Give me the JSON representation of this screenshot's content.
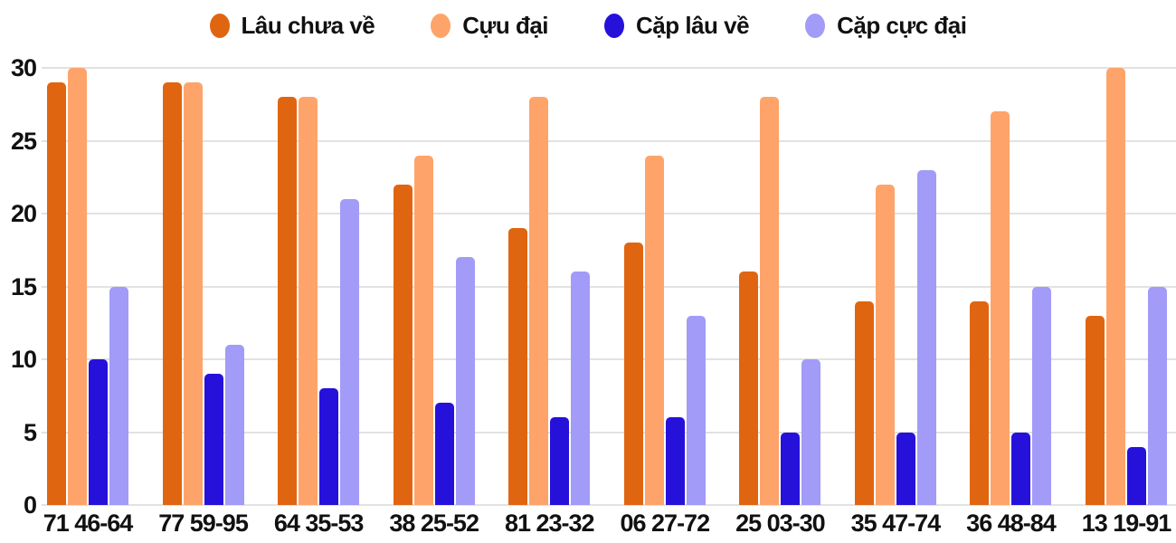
{
  "chart_data": {
    "type": "bar",
    "title": "",
    "xlabel": "",
    "ylabel": "",
    "categories": [
      "71 46-64",
      "77 59-95",
      "64 35-53",
      "38 25-52",
      "81 23-32",
      "06 27-72",
      "25 03-30",
      "35 47-74",
      "36 48-84",
      "13 19-91"
    ],
    "series": [
      {
        "name": "Lâu chưa về",
        "color": "#E06511",
        "values": [
          29,
          29,
          28,
          22,
          19,
          18,
          16,
          14,
          14,
          13
        ]
      },
      {
        "name": "Cựu đại",
        "color": "#FEA46A",
        "values": [
          30,
          29,
          28,
          24,
          28,
          24,
          28,
          22,
          27,
          30
        ]
      },
      {
        "name": "Cặp lâu về",
        "color": "#2611DB",
        "values": [
          10,
          9,
          8,
          7,
          6,
          6,
          5,
          5,
          5,
          4
        ]
      },
      {
        "name": "Cặp cực đại",
        "color": "#A29BF8",
        "values": [
          15,
          11,
          21,
          17,
          16,
          13,
          10,
          23,
          15,
          15
        ]
      }
    ],
    "ylim": [
      0,
      30
    ],
    "yticks": [
      0,
      5,
      10,
      15,
      20,
      25,
      30
    ],
    "grid": "horizontal-only",
    "gridline_color": "#E2E2E2",
    "text_color": "#111111",
    "legend_position": "top-center",
    "background_color": "#ffffff"
  }
}
